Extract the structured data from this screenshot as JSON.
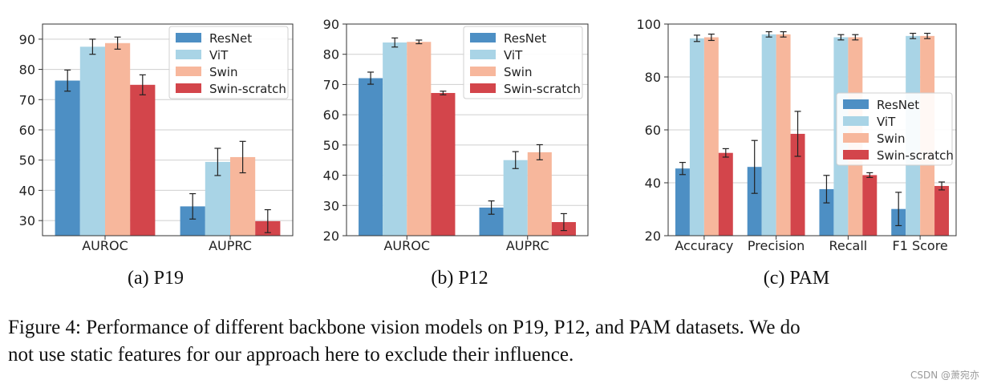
{
  "colors": {
    "ResNet": "#4d8fc4",
    "ViT": "#a9d4e6",
    "Swin": "#f7b79c",
    "Swin-scratch": "#d3454b",
    "grid": "#cfcfcf",
    "axis": "#333333"
  },
  "chart_data": [
    {
      "type": "bar",
      "subtitle": "(a)  P19",
      "categories": [
        "AUROC",
        "AUPRC"
      ],
      "ylim": [
        25,
        95
      ],
      "yticks": [
        30,
        40,
        50,
        60,
        70,
        80,
        90
      ],
      "grid": true,
      "legend_position": "top-right",
      "series": [
        {
          "name": "ResNet",
          "values": [
            76.3,
            34.7
          ],
          "errors": [
            3.5,
            4.2
          ]
        },
        {
          "name": "ViT",
          "values": [
            87.5,
            49.4
          ],
          "errors": [
            2.5,
            4.5
          ]
        },
        {
          "name": "Swin",
          "values": [
            88.7,
            51.0
          ],
          "errors": [
            2.0,
            5.2
          ]
        },
        {
          "name": "Swin-scratch",
          "values": [
            74.9,
            29.8
          ],
          "errors": [
            3.3,
            3.8
          ]
        }
      ]
    },
    {
      "type": "bar",
      "subtitle": "(b)  P12",
      "categories": [
        "AUROC",
        "AUPRC"
      ],
      "ylim": [
        20,
        90
      ],
      "yticks": [
        20,
        30,
        40,
        50,
        60,
        70,
        80,
        90
      ],
      "grid": true,
      "legend_position": "top-right",
      "series": [
        {
          "name": "ResNet",
          "values": [
            72.1,
            29.3
          ],
          "errors": [
            2.0,
            2.2
          ]
        },
        {
          "name": "ViT",
          "values": [
            83.9,
            45.0
          ],
          "errors": [
            1.5,
            2.8
          ]
        },
        {
          "name": "Swin",
          "values": [
            84.1,
            47.6
          ],
          "errors": [
            0.6,
            2.5
          ]
        },
        {
          "name": "Swin-scratch",
          "values": [
            67.2,
            24.5
          ],
          "errors": [
            0.6,
            2.8
          ]
        }
      ]
    },
    {
      "type": "bar",
      "subtitle": "(c)  PAM",
      "categories": [
        "Accuracy",
        "Precision",
        "Recall",
        "F1 Score"
      ],
      "ylim": [
        20,
        100
      ],
      "yticks": [
        20,
        40,
        60,
        80,
        100
      ],
      "grid": true,
      "legend_position": "center-right",
      "series": [
        {
          "name": "ResNet",
          "values": [
            45.4,
            46.0,
            37.6,
            30.1
          ],
          "errors": [
            2.3,
            10.0,
            5.2,
            6.3
          ]
        },
        {
          "name": "ViT",
          "values": [
            94.6,
            96.1,
            95.0,
            95.5
          ],
          "errors": [
            1.2,
            1.0,
            1.0,
            1.0
          ]
        },
        {
          "name": "Swin",
          "values": [
            95.0,
            96.1,
            95.0,
            95.5
          ],
          "errors": [
            1.2,
            1.0,
            1.0,
            1.0
          ]
        },
        {
          "name": "Swin-scratch",
          "values": [
            51.3,
            58.5,
            42.9,
            38.8
          ],
          "errors": [
            1.6,
            8.5,
            0.9,
            1.5
          ]
        }
      ]
    }
  ],
  "caption": {
    "line1": "Figure 4: Performance of different backbone vision models on P19, P12, and PAM datasets. We do",
    "line2": "not use static features for our approach here to exclude their influence."
  },
  "watermark": "CSDN @萧宛亦"
}
